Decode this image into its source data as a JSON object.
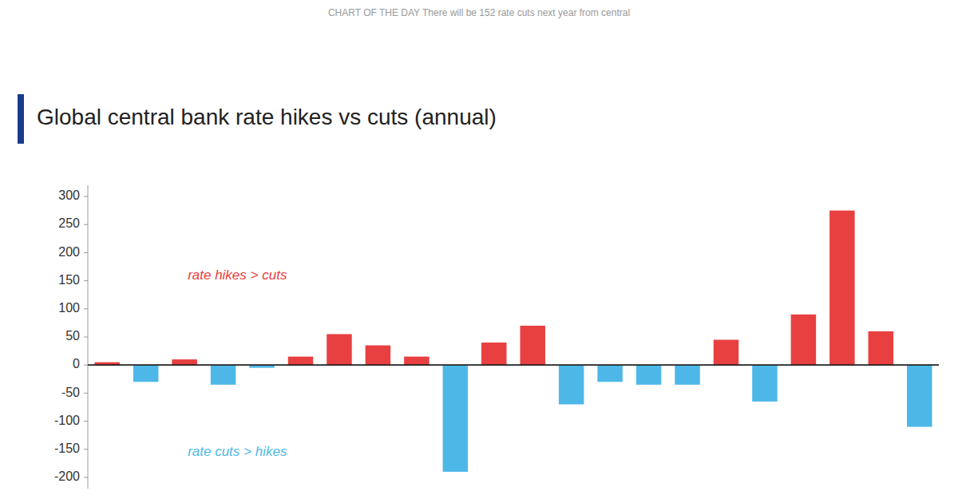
{
  "chart_data": {
    "type": "bar",
    "title": "Global central bank rate hikes vs cuts (annual)",
    "subtitle": "CHART OF THE DAY  There will be 152 rate cuts next year from central",
    "categories": [
      null,
      null,
      null,
      null,
      null,
      null,
      null,
      null,
      null,
      null,
      null,
      null,
      null,
      null,
      null,
      null,
      null,
      null,
      null,
      null,
      null,
      null
    ],
    "values": [
      5,
      -30,
      10,
      -35,
      -5,
      15,
      55,
      35,
      15,
      -190,
      40,
      70,
      -70,
      -30,
      -35,
      -35,
      45,
      -65,
      90,
      275,
      60,
      -110
    ],
    "colors": [
      "#e84040",
      "#4db8e8",
      "#e84040",
      "#4db8e8",
      "#4db8e8",
      "#e84040",
      "#e84040",
      "#e84040",
      "#e84040",
      "#4db8e8",
      "#e84040",
      "#e84040",
      "#4db8e8",
      "#4db8e8",
      "#4db8e8",
      "#4db8e8",
      "#e84040",
      "#4db8e8",
      "#e84040",
      "#e84040",
      "#e84040",
      "#4db8e8"
    ],
    "annotations": [
      {
        "text": "rate hikes > cuts",
        "color": "#e84040"
      },
      {
        "text": "rate cuts > hikes",
        "color": "#4db8e8"
      }
    ],
    "ylim": [
      -220,
      320
    ],
    "yticks": [
      -200,
      -150,
      -100,
      -50,
      0,
      50,
      100,
      150,
      200,
      250,
      300
    ],
    "grid": false,
    "tick_labels": "y"
  }
}
